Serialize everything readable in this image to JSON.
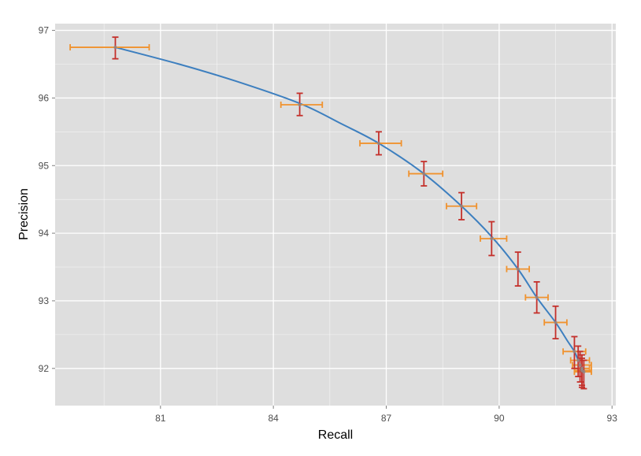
{
  "chart_data": {
    "type": "scatter",
    "xlabel": "Recall",
    "ylabel": "Precision",
    "xlim": [
      78.2,
      93.1
    ],
    "ylim": [
      91.45,
      97.1
    ],
    "x_ticks": [
      81,
      84,
      87,
      90,
      93
    ],
    "x_tick_labels": [
      "81",
      "84",
      "87",
      "90",
      "93"
    ],
    "y_ticks": [
      92,
      93,
      94,
      95,
      96,
      97
    ],
    "y_tick_labels": [
      "92",
      "93",
      "94",
      "95",
      "96",
      "97"
    ],
    "grid": true,
    "colors": {
      "panel": "#dedede",
      "grid": "#ffffff",
      "curve": "#3d7fbf",
      "x_error": "#f0922e",
      "y_error": "#c4302b",
      "point": "#8c8c8c"
    },
    "curve": {
      "x": [
        79.8,
        81.5,
        83.0,
        84.7,
        85.8,
        86.8,
        88.0,
        89.0,
        89.8,
        90.5,
        91.0,
        91.5,
        91.8,
        92.0,
        92.1
      ],
      "y": [
        96.75,
        96.5,
        96.25,
        95.92,
        95.62,
        95.33,
        94.88,
        94.4,
        93.95,
        93.47,
        93.05,
        92.68,
        92.42,
        92.25,
        92.12
      ]
    },
    "points": [
      {
        "x": 79.8,
        "y": 96.75,
        "x_err": [
          78.6,
          80.7
        ],
        "y_err": [
          96.58,
          96.9
        ]
      },
      {
        "x": 84.7,
        "y": 95.9,
        "x_err": [
          84.2,
          85.3
        ],
        "y_err": [
          95.74,
          96.07
        ]
      },
      {
        "x": 86.8,
        "y": 95.33,
        "x_err": [
          86.3,
          87.4
        ],
        "y_err": [
          95.16,
          95.5
        ]
      },
      {
        "x": 88.0,
        "y": 94.88,
        "x_err": [
          87.6,
          88.5
        ],
        "y_err": [
          94.7,
          95.06
        ]
      },
      {
        "x": 89.0,
        "y": 94.4,
        "x_err": [
          88.6,
          89.4
        ],
        "y_err": [
          94.2,
          94.6
        ]
      },
      {
        "x": 89.8,
        "y": 93.92,
        "x_err": [
          89.5,
          90.2
        ],
        "y_err": [
          93.67,
          94.17
        ]
      },
      {
        "x": 90.5,
        "y": 93.47,
        "x_err": [
          90.2,
          90.8
        ],
        "y_err": [
          93.22,
          93.72
        ]
      },
      {
        "x": 91.0,
        "y": 93.05,
        "x_err": [
          90.7,
          91.3
        ],
        "y_err": [
          92.82,
          93.28
        ]
      },
      {
        "x": 91.5,
        "y": 92.68,
        "x_err": [
          91.2,
          91.8
        ],
        "y_err": [
          92.44,
          92.92
        ]
      },
      {
        "x": 92.0,
        "y": 92.25,
        "x_err": [
          91.7,
          92.3
        ],
        "y_err": [
          92.0,
          92.47
        ]
      },
      {
        "x": 92.1,
        "y": 92.12,
        "x_err": [
          91.9,
          92.4
        ],
        "y_err": [
          91.88,
          92.33
        ]
      },
      {
        "x": 92.15,
        "y": 92.05,
        "x_err": [
          91.95,
          92.45
        ],
        "y_err": [
          91.8,
          92.25
        ]
      },
      {
        "x": 92.2,
        "y": 92.0,
        "x_err": [
          92.0,
          92.4
        ],
        "y_err": [
          91.75,
          92.2
        ]
      },
      {
        "x": 92.2,
        "y": 91.97,
        "x_err": [
          92.0,
          92.45
        ],
        "y_err": [
          91.72,
          92.15
        ]
      },
      {
        "x": 92.25,
        "y": 91.95,
        "x_err": [
          92.0,
          92.45
        ],
        "y_err": [
          91.7,
          92.12
        ]
      }
    ]
  }
}
